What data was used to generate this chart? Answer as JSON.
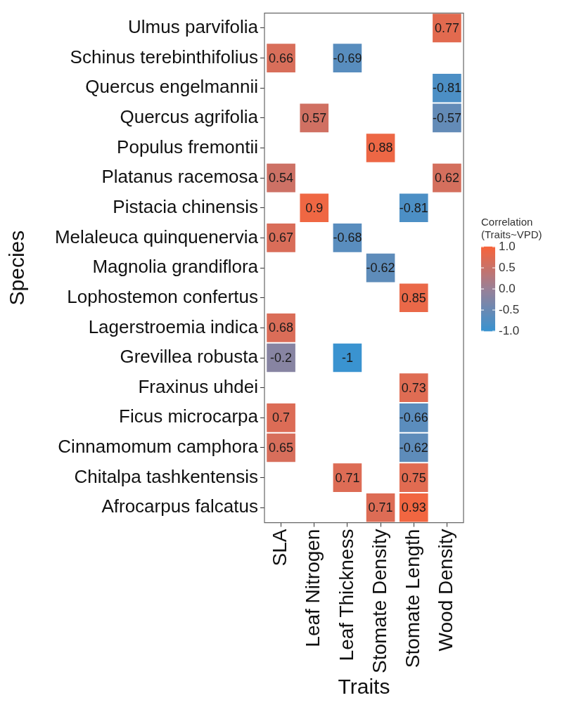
{
  "chart_data": {
    "type": "heatmap",
    "xlabel": "Traits",
    "ylabel": "Species",
    "legend_title": "Correlation (Traits~VPD)",
    "categories": [
      "SLA",
      "Leaf Nitrogen",
      "Leaf Thickness",
      "Stomate Density",
      "Stomate Length",
      "Wood Density"
    ],
    "y_categories": [
      "Ulmus parvifolia",
      "Schinus terebinthifolius",
      "Quercus engelmannii",
      "Quercus agrifolia",
      "Populus fremontii",
      "Platanus racemosa",
      "Pistacia chinensis",
      "Melaleuca quinquenervia",
      "Magnolia grandiflora",
      "Lophostemon confertus",
      "Lagerstroemia indica",
      "Grevillea robusta",
      "Fraxinus uhdei",
      "Ficus microcarpa",
      "Cinnamomum camphora",
      "Chitalpa tashkentensis",
      "Afrocarpus falcatus"
    ],
    "cells": [
      [
        null,
        null,
        null,
        null,
        null,
        0.77
      ],
      [
        0.66,
        null,
        -0.69,
        null,
        null,
        null
      ],
      [
        null,
        null,
        null,
        null,
        null,
        -0.81
      ],
      [
        null,
        0.57,
        null,
        null,
        null,
        -0.57
      ],
      [
        null,
        null,
        null,
        0.88,
        null,
        null
      ],
      [
        0.54,
        null,
        null,
        null,
        null,
        0.62
      ],
      [
        null,
        0.9,
        null,
        null,
        -0.81,
        null
      ],
      [
        0.67,
        null,
        -0.68,
        null,
        null,
        null
      ],
      [
        null,
        null,
        null,
        -0.62,
        null,
        null
      ],
      [
        null,
        null,
        null,
        null,
        0.85,
        null
      ],
      [
        0.68,
        null,
        null,
        null,
        null,
        null
      ],
      [
        -0.2,
        null,
        -1,
        null,
        null,
        null
      ],
      [
        null,
        null,
        null,
        null,
        0.73,
        null
      ],
      [
        0.7,
        null,
        null,
        null,
        -0.66,
        null
      ],
      [
        0.65,
        null,
        null,
        null,
        -0.62,
        null
      ],
      [
        null,
        null,
        0.71,
        null,
        0.75,
        null
      ],
      [
        null,
        null,
        null,
        0.71,
        0.93,
        null
      ]
    ],
    "clim": [
      -1,
      1
    ],
    "cticks": [
      {
        "value": -1,
        "label": "-1.0"
      },
      {
        "value": -0.5,
        "label": "-0.5"
      },
      {
        "value": 0,
        "label": "0.0"
      },
      {
        "value": 0.5,
        "label": "0.5"
      },
      {
        "value": 1,
        "label": "1.0"
      }
    ],
    "data_labels": true,
    "grid": false
  }
}
